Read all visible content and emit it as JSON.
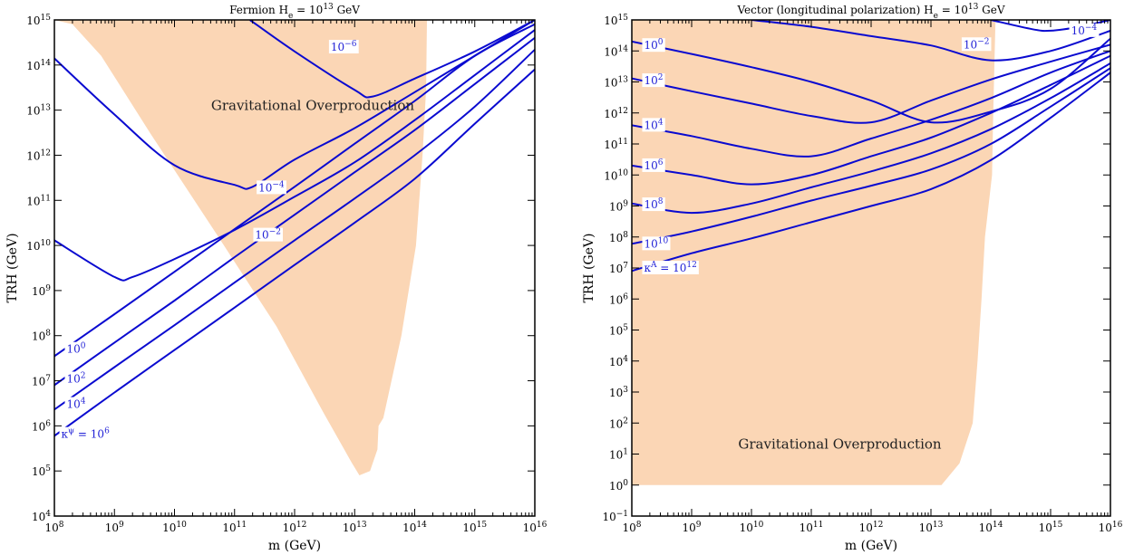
{
  "colors": {
    "region": "#fbd6b5",
    "curve": "#0a0ad0",
    "curve_label": "#1f1fd6",
    "frame": "#000000"
  },
  "chart_data": [
    {
      "type": "line",
      "title": "Fermion    H_e = 10^13 GeV",
      "title_parts": [
        "Fermion",
        "H",
        "e",
        " = 10",
        "13",
        " GeV"
      ],
      "xlabel": "m (GeV)",
      "ylabel": "T_RH (GeV)",
      "xscale": "log",
      "yscale": "log",
      "xlim": [
        100000000.0,
        1e+16
      ],
      "ylim": [
        10000.0,
        1000000000000000.0
      ],
      "xticks": [
        "10^8",
        "10^9",
        "10^10",
        "10^11",
        "10^12",
        "10^13",
        "10^14",
        "10^15",
        "10^16"
      ],
      "yticks": [
        "10^4",
        "10^5",
        "10^6",
        "10^7",
        "10^8",
        "10^9",
        "10^10",
        "10^11",
        "10^12",
        "10^13",
        "10^14",
        "10^15"
      ],
      "region": {
        "label": "Gravitational Overproduction",
        "boundary": [
          [
            100000000.0,
            1000000000000000.0
          ],
          [
            160000000000000.0,
            1000000000000000.0
          ],
          [
            155000000000000.0,
            30000000000000.0
          ],
          [
            135000000000000.0,
            1000000000000.0
          ],
          [
            105000000000000.0,
            10000000000.0
          ],
          [
            60000000000000.0,
            100000000.0
          ],
          [
            30000000000000.0,
            1500000.0
          ],
          [
            25000000000000.0,
            1000000.0
          ],
          [
            24000000000000.0,
            300000.0
          ],
          [
            18000000000000.0,
            100000.0
          ],
          [
            12000000000000.0,
            80000.0
          ],
          [
            9000000000000.0,
            150000.0
          ],
          [
            3000000000000.0,
            2000000.0
          ],
          [
            500000000000.0,
            160000000.0
          ],
          [
            50000000000.0,
            18000000000.0
          ],
          [
            4000000000.0,
            3000000000000.0
          ],
          [
            600000000.0,
            160000000000000.0
          ],
          [
            200000000.0,
            800000000000000.0
          ],
          [
            100000000.0,
            1000000000000000.0
          ]
        ]
      },
      "series": [
        {
          "name": "10^-6",
          "label_parts": [
            "10",
            "−6"
          ],
          "points": [
            [
              180000000000.0,
              1000000000000000.0
            ],
            [
              1000000000000.0,
              200000000000000.0
            ],
            [
              10000000000000.0,
              28000000000000.0
            ],
            [
              20000000000000.0,
              20000000000000.0
            ],
            [
              100000000000000.0,
              50000000000000.0
            ],
            [
              1000000000000000.0,
              200000000000000.0
            ],
            [
              1e+16,
              1000000000000000.0
            ]
          ]
        },
        {
          "name": "10^-4",
          "label_parts": [
            "10",
            "−4"
          ],
          "points": [
            [
              100000000.0,
              140000000000000.0
            ],
            [
              1000000000.0,
              8000000000000.0
            ],
            [
              10000000000.0,
              600000000000.0
            ],
            [
              100000000000.0,
              220000000000.0
            ],
            [
              200000000000.0,
              200000000000.0
            ],
            [
              1000000000000.0,
              800000000000.0
            ],
            [
              10000000000000.0,
              4000000000000.0
            ],
            [
              100000000000000.0,
              25000000000000.0
            ],
            [
              1000000000000000.0,
              160000000000000.0
            ],
            [
              1e+16,
              1000000000000000.0
            ]
          ]
        },
        {
          "name": "10^-2",
          "label_parts": [
            "10",
            "−2"
          ],
          "points": [
            [
              100000000.0,
              13000000000.0
            ],
            [
              1000000000.0,
              2000000000.0
            ],
            [
              2000000000.0,
              2000000000.0
            ],
            [
              10000000000.0,
              5000000000.0
            ],
            [
              100000000000.0,
              22000000000.0
            ],
            [
              1000000000000.0,
              120000000000.0
            ],
            [
              10000000000000.0,
              700000000000.0
            ],
            [
              100000000000000.0,
              6000000000000.0
            ],
            [
              1000000000000000.0,
              60000000000000.0
            ],
            [
              1e+16,
              600000000000000.0
            ]
          ]
        },
        {
          "name": "10^0",
          "label_parts": [
            "10",
            "0"
          ],
          "points": [
            [
              100000000.0,
              35000000.0
            ],
            [
              1000000000.0,
              300000000.0
            ],
            [
              10000000000.0,
              2600000000.0
            ],
            [
              100000000000.0,
              23000000000.0
            ],
            [
              1000000000000.0,
              200000000000.0
            ],
            [
              10000000000000.0,
              1800000000000.0
            ],
            [
              100000000000000.0,
              16000000000000.0
            ],
            [
              1000000000000000.0,
              160000000000000.0
            ],
            [
              1e+16,
              800000000000000.0
            ]
          ]
        },
        {
          "name": "10^2",
          "label_parts": [
            "10",
            "2"
          ],
          "points": [
            [
              100000000.0,
              8000000.0
            ],
            [
              1000000000.0,
              70000000.0
            ],
            [
              10000000000.0,
              600000000.0
            ],
            [
              100000000000.0,
              5500000000.0
            ],
            [
              1000000000000.0,
              48000000000.0
            ],
            [
              10000000000000.0,
              420000000000.0
            ],
            [
              100000000000000.0,
              3600000000000.0
            ],
            [
              1000000000000000.0,
              38000000000000.0
            ],
            [
              1e+16,
              400000000000000.0
            ]
          ]
        },
        {
          "name": "10^4",
          "label_parts": [
            "10",
            "4"
          ],
          "points": [
            [
              100000000.0,
              2300000.0
            ],
            [
              1000000000.0,
              20000000.0
            ],
            [
              10000000000.0,
              170000000.0
            ],
            [
              100000000000.0,
              1500000000.0
            ],
            [
              1000000000000.0,
              13000000000.0
            ],
            [
              10000000000000.0,
              110000000000.0
            ],
            [
              100000000000000.0,
              1000000000000.0
            ],
            [
              1000000000000000.0,
              12000000000000.0
            ],
            [
              1e+16,
              220000000000000.0
            ]
          ]
        },
        {
          "name": "κ_ψ = 10^6",
          "label_parts": [
            "κ",
            "ψ",
            " = 10",
            "6"
          ],
          "points": [
            [
              100000000.0,
              600000.0
            ],
            [
              1000000000.0,
              5500000.0
            ],
            [
              10000000000.0,
              48000000.0
            ],
            [
              100000000000.0,
              420000000.0
            ],
            [
              1000000000000.0,
              3700000000.0
            ],
            [
              10000000000000.0,
              32000000000.0
            ],
            [
              100000000000000.0,
              300000000000.0
            ],
            [
              1000000000000000.0,
              5000000000000.0
            ],
            [
              1e+16,
              80000000000000.0
            ]
          ]
        }
      ]
    },
    {
      "type": "line",
      "title": "Vector (longitudinal polarization)    H_e = 10^13 GeV",
      "title_parts": [
        "Vector (longitudinal polarization)",
        "H",
        "e",
        " = 10",
        "13",
        " GeV"
      ],
      "xlabel": "m (GeV)",
      "ylabel": "T_RH (GeV)",
      "xscale": "log",
      "yscale": "log",
      "xlim": [
        100000000.0,
        1e+16
      ],
      "ylim": [
        0.1,
        1000000000000000.0
      ],
      "xticks": [
        "10^8",
        "10^9",
        "10^10",
        "10^11",
        "10^12",
        "10^13",
        "10^14",
        "10^15",
        "10^16"
      ],
      "yticks": [
        "10^-1",
        "10^0",
        "10^1",
        "10^2",
        "10^3",
        "10^4",
        "10^5",
        "10^6",
        "10^7",
        "10^8",
        "10^9",
        "10^10",
        "10^11",
        "10^12",
        "10^13",
        "10^14",
        "10^15"
      ],
      "region": {
        "label": "Gravitational Overproduction",
        "boundary": [
          [
            100000000.0,
            1000000000000000.0
          ],
          [
            120000000000000.0,
            1000000000000000.0
          ],
          [
            110000000000000.0,
            1000000000000.0
          ],
          [
            105000000000000.0,
            10000000000.0
          ],
          [
            80000000000000.0,
            100000000.0
          ],
          [
            70000000000000.0,
            1000000.0
          ],
          [
            60000000000000.0,
            10000.0
          ],
          [
            50000000000000.0,
            100.0
          ],
          [
            30000000000000.0,
            5
          ],
          [
            15000000000000.0,
            1
          ],
          [
            100000000.0,
            1
          ],
          [
            100000000.0,
            1000000000000000.0
          ]
        ]
      },
      "series": [
        {
          "name": "10^-4",
          "label_parts": [
            "10",
            "−4"
          ],
          "points": [
            [
              100000000000000.0,
              1000000000000000.0
            ],
            [
              500000000000000.0,
              500000000000000.0
            ],
            [
              1000000000000000.0,
              450000000000000.0
            ],
            [
              3000000000000000.0,
              600000000000000.0
            ],
            [
              1e+16,
              1000000000000000.0
            ]
          ]
        },
        {
          "name": "10^-2",
          "label_parts": [
            "10",
            "−2"
          ],
          "points": [
            [
              10000000000.0,
              1000000000000000.0
            ],
            [
              100000000000.0,
              600000000000000.0
            ],
            [
              1000000000000.0,
              300000000000000.0
            ],
            [
              10000000000000.0,
              150000000000000.0
            ],
            [
              100000000000000.0,
              50000000000000.0
            ],
            [
              1000000000000000.0,
              100000000000000.0
            ],
            [
              1e+16,
              450000000000000.0
            ]
          ]
        },
        {
          "name": "10^0",
          "label_parts": [
            "10",
            "0"
          ],
          "points": [
            [
              100000000.0,
              200000000000000.0
            ],
            [
              1000000000.0,
              80000000000000.0
            ],
            [
              10000000000.0,
              30000000000000.0
            ],
            [
              100000000000.0,
              10000000000000.0
            ],
            [
              1000000000000.0,
              2500000000000.0
            ],
            [
              10000000000000.0,
              500000000000.0
            ],
            [
              100000000000000.0,
              1100000000000.0
            ],
            [
              1000000000000000.0,
              6000000000000.0
            ],
            [
              1e+16,
              250000000000000.0
            ]
          ]
        },
        {
          "name": "10^2",
          "label_parts": [
            "10",
            "2"
          ],
          "points": [
            [
              100000000.0,
              13000000000000.0
            ],
            [
              1000000000.0,
              5000000000000.0
            ],
            [
              10000000000.0,
              2000000000000.0
            ],
            [
              100000000000.0,
              800000000000.0
            ],
            [
              1000000000000.0,
              500000000000.0
            ],
            [
              10000000000000.0,
              2500000000000.0
            ],
            [
              100000000000000.0,
              12000000000000.0
            ],
            [
              1000000000000000.0,
              45000000000000.0
            ],
            [
              1e+16,
              160000000000000.0
            ]
          ]
        },
        {
          "name": "10^4",
          "label_parts": [
            "10",
            "4"
          ],
          "points": [
            [
              100000000.0,
              400000000000.0
            ],
            [
              1000000000.0,
              180000000000.0
            ],
            [
              10000000000.0,
              70000000000.0
            ],
            [
              100000000000.0,
              40000000000.0
            ],
            [
              1000000000000.0,
              150000000000.0
            ],
            [
              10000000000000.0,
              600000000000.0
            ],
            [
              100000000000000.0,
              3000000000000.0
            ],
            [
              1000000000000000.0,
              20000000000000.0
            ],
            [
              1e+16,
              100000000000000.0
            ]
          ]
        },
        {
          "name": "10^6",
          "label_parts": [
            "10",
            "6"
          ],
          "points": [
            [
              100000000.0,
              20000000000.0
            ],
            [
              1000000000.0,
              10000000000.0
            ],
            [
              10000000000.0,
              5000000000.0
            ],
            [
              100000000000.0,
              10000000000.0
            ],
            [
              1000000000000.0,
              40000000000.0
            ],
            [
              10000000000000.0,
              160000000000.0
            ],
            [
              100000000000000.0,
              1000000000000.0
            ],
            [
              1000000000000000.0,
              8000000000000.0
            ],
            [
              1e+16,
              70000000000000.0
            ]
          ]
        },
        {
          "name": "10^8",
          "label_parts": [
            "10",
            "8"
          ],
          "points": [
            [
              100000000.0,
              1200000000.0
            ],
            [
              1000000000.0,
              600000000.0
            ],
            [
              10000000000.0,
              1200000000.0
            ],
            [
              100000000000.0,
              4000000000.0
            ],
            [
              1000000000000.0,
              13000000000.0
            ],
            [
              10000000000000.0,
              50000000000.0
            ],
            [
              100000000000000.0,
              300000000000.0
            ],
            [
              1000000000000000.0,
              3000000000000.0
            ],
            [
              1e+16,
              40000000000000.0
            ]
          ]
        },
        {
          "name": "10^10",
          "label_parts": [
            "10",
            "10"
          ],
          "points": [
            [
              100000000.0,
              60000000.0
            ],
            [
              1000000000.0,
              150000000.0
            ],
            [
              10000000000.0,
              450000000.0
            ],
            [
              100000000000.0,
              1500000000.0
            ],
            [
              1000000000000.0,
              4500000000.0
            ],
            [
              10000000000000.0,
              15000000000.0
            ],
            [
              100000000000000.0,
              100000000000.0
            ],
            [
              1000000000000000.0,
              1600000000000.0
            ],
            [
              1e+16,
              28000000000000.0
            ]
          ]
        },
        {
          "name": "κ_A = 10^12",
          "label_parts": [
            "κ",
            "A",
            " = 10",
            "12"
          ],
          "points": [
            [
              100000000.0,
              8000000.0
            ],
            [
              1000000000.0,
              30000000.0
            ],
            [
              10000000000.0,
              90000000.0
            ],
            [
              100000000000.0,
              300000000.0
            ],
            [
              1000000000000.0,
              1000000000.0
            ],
            [
              10000000000000.0,
              3500000000.0
            ],
            [
              100000000000000.0,
              30000000000.0
            ],
            [
              1000000000000000.0,
              700000000000.0
            ],
            [
              1e+16,
              20000000000000.0
            ]
          ]
        }
      ]
    }
  ]
}
